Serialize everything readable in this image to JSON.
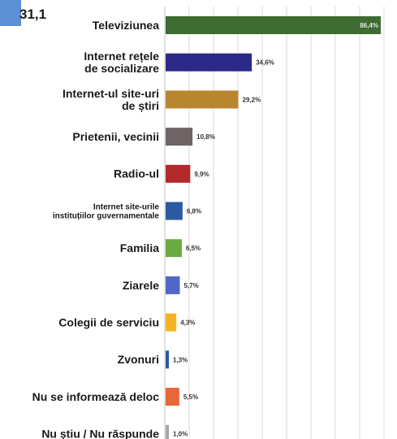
{
  "corner": {
    "text": "31,1",
    "accent_color": "#5b8fd6"
  },
  "chart_data": {
    "type": "bar",
    "orientation": "horizontal",
    "categories": [
      [
        "Televiziunea"
      ],
      [
        "Internet rețele",
        "de socializare"
      ],
      [
        "Internet-ul site-uri",
        "de știri"
      ],
      [
        "Prietenii, vecinii"
      ],
      [
        "Radio-ul"
      ],
      [
        "Internet site-urile",
        "instituțiilor guvernamentale"
      ],
      [
        "Familia"
      ],
      [
        "Ziarele"
      ],
      [
        "Colegii de serviciu"
      ],
      [
        "Zvonuri"
      ],
      [
        "Nu se informează deloc"
      ],
      [
        "Nu știu / Nu răspunde"
      ]
    ],
    "values": [
      86.4,
      34.6,
      29.2,
      10.8,
      9.9,
      6.8,
      6.5,
      5.7,
      4.3,
      1.3,
      5.5,
      1.0
    ],
    "value_labels": [
      "86,4%",
      "34,6%",
      "29,2%",
      "10,8%",
      "9,9%",
      "6,8%",
      "6,5%",
      "5,7%",
      "4,3%",
      "1,3%",
      "5,5%",
      "1,0%"
    ],
    "colors": [
      "#3d6b30",
      "#2b2a86",
      "#b8862f",
      "#6e6465",
      "#b22a2a",
      "#2a5aa1",
      "#6aaa3f",
      "#4f68c8",
      "#f4b323",
      "#2a5aa1",
      "#e8673a",
      "#a6a6a6"
    ],
    "xlim": [
      0,
      90
    ],
    "grid": true,
    "legend": "none"
  }
}
